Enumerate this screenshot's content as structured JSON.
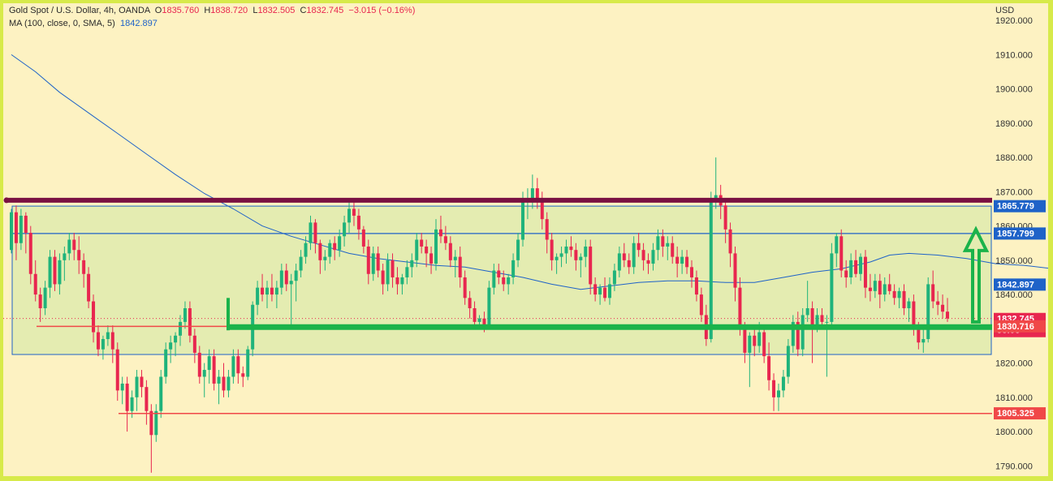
{
  "legend": {
    "line1": {
      "symbol": "Gold Spot / U.S. Dollar, 4h, OANDA",
      "o_label": "O",
      "o_value": "1835.760",
      "h_label": "H",
      "h_value": "1838.720",
      "l_label": "L",
      "l_value": "1832.505",
      "c_label": "C",
      "c_value": "1832.745",
      "change": "−3.015 (−0.16%)"
    },
    "line2": {
      "label": "MA (100, close, 0, SMA, 5)",
      "value": "1842.897"
    }
  },
  "colors": {
    "up": "#1fb37b",
    "down": "#e8264f",
    "ma": "#1e62c8",
    "resistance": "#7a1142",
    "support_band": "#1bb34a",
    "zone_fill": "#e4ecb1",
    "frame": "#d7ea4a"
  },
  "chart_data": {
    "type": "candlestick",
    "title": "",
    "currency": "USD",
    "ylim": [
      1787,
      1925
    ],
    "y_ticks": [
      "1790.000",
      "1800.000",
      "1810.000",
      "1820.000",
      "1830.000",
      "1840.000",
      "1850.000",
      "1860.000",
      "1870.000",
      "1880.000",
      "1890.000",
      "1900.000",
      "1910.000",
      "1920.000"
    ],
    "price_tags": [
      {
        "label": "1865.779",
        "value": 1865.779,
        "color": "#1e62c8"
      },
      {
        "label": "1857.799",
        "value": 1857.799,
        "color": "#1e62c8"
      },
      {
        "label": "1842.897",
        "value": 1842.897,
        "color": "#1e62c8"
      },
      {
        "label": "1832.745",
        "value": 1832.745,
        "color": "#e8264f",
        "sub": "53:06"
      },
      {
        "label": "1830.716",
        "value": 1830.716,
        "color": "#f04848"
      },
      {
        "label": "1805.325",
        "value": 1805.325,
        "color": "#f04848"
      }
    ],
    "levels": {
      "resistance_thick": 1867.5,
      "zone_top": 1865.8,
      "zone_bottom": 1822.5,
      "blue_line": 1857.8,
      "support_thick": 1830.5,
      "red_line_1830": 1830.7,
      "red_line_1805": 1805.3
    },
    "ma_points": [
      [
        0,
        1910
      ],
      [
        5,
        1905
      ],
      [
        10,
        1899
      ],
      [
        16,
        1893
      ],
      [
        22,
        1887
      ],
      [
        28,
        1881
      ],
      [
        34,
        1875
      ],
      [
        40,
        1869.5
      ],
      [
        46,
        1865
      ],
      [
        52,
        1860
      ],
      [
        58,
        1857
      ],
      [
        64,
        1854.5
      ],
      [
        70,
        1852
      ],
      [
        76,
        1850.5
      ],
      [
        82,
        1849.5
      ],
      [
        88,
        1848.5
      ],
      [
        94,
        1848
      ],
      [
        100,
        1846.5
      ],
      [
        106,
        1845
      ],
      [
        112,
        1843
      ],
      [
        118,
        1841.5
      ],
      [
        124,
        1842.5
      ],
      [
        130,
        1843.5
      ],
      [
        136,
        1844
      ],
      [
        142,
        1844
      ],
      [
        148,
        1843.5
      ],
      [
        154,
        1843.5
      ],
      [
        160,
        1845
      ],
      [
        166,
        1846.5
      ],
      [
        172,
        1847.5
      ],
      [
        178,
        1849.5
      ],
      [
        182,
        1851.5
      ],
      [
        186,
        1852
      ],
      [
        192,
        1851.5
      ],
      [
        198,
        1850.5
      ],
      [
        204,
        1849
      ],
      [
        210,
        1848.5
      ],
      [
        216,
        1847.5
      ],
      [
        222,
        1846.5
      ],
      [
        228,
        1845.5
      ],
      [
        232,
        1845
      ],
      [
        236,
        1843.5
      ]
    ],
    "candles": [
      [
        1853,
        1865,
        1852,
        1864
      ],
      [
        1864,
        1866,
        1850,
        1855
      ],
      [
        1855,
        1865,
        1853,
        1863
      ],
      [
        1863,
        1864,
        1852,
        1858
      ],
      [
        1858,
        1860,
        1843,
        1846
      ],
      [
        1846,
        1850,
        1838,
        1840
      ],
      [
        1840,
        1842,
        1832,
        1836
      ],
      [
        1836,
        1844,
        1834,
        1842
      ],
      [
        1842,
        1853,
        1839,
        1851
      ],
      [
        1851,
        1853,
        1841,
        1843
      ],
      [
        1843,
        1852,
        1840,
        1850
      ],
      [
        1850,
        1854,
        1844,
        1852
      ],
      [
        1852,
        1858,
        1850,
        1856
      ],
      [
        1856,
        1858,
        1850,
        1853
      ],
      [
        1853,
        1857,
        1846,
        1850
      ],
      [
        1850,
        1852,
        1842,
        1846
      ],
      [
        1846,
        1848,
        1836,
        1838
      ],
      [
        1838,
        1840,
        1826,
        1829
      ],
      [
        1829,
        1831,
        1822,
        1824
      ],
      [
        1824,
        1828,
        1821,
        1827
      ],
      [
        1827,
        1831,
        1825,
        1829
      ],
      [
        1829,
        1831,
        1820,
        1824
      ],
      [
        1824,
        1826,
        1809,
        1812
      ],
      [
        1812,
        1816,
        1808,
        1814
      ],
      [
        1814,
        1816,
        1800,
        1806
      ],
      [
        1806,
        1812,
        1804,
        1810
      ],
      [
        1810,
        1818,
        1806,
        1816
      ],
      [
        1816,
        1818,
        1810,
        1813
      ],
      [
        1813,
        1815,
        1802,
        1806
      ],
      [
        1806,
        1808,
        1788,
        1799
      ],
      [
        1799,
        1808,
        1797,
        1806
      ],
      [
        1806,
        1818,
        1804,
        1816
      ],
      [
        1816,
        1826,
        1814,
        1824
      ],
      [
        1824,
        1828,
        1820,
        1826
      ],
      [
        1826,
        1829,
        1822,
        1828
      ],
      [
        1828,
        1834,
        1825,
        1832
      ],
      [
        1832,
        1838,
        1830,
        1836
      ],
      [
        1836,
        1838,
        1826,
        1828
      ],
      [
        1828,
        1830,
        1820,
        1823
      ],
      [
        1823,
        1825,
        1814,
        1816
      ],
      [
        1816,
        1820,
        1810,
        1818
      ],
      [
        1818,
        1824,
        1814,
        1822
      ],
      [
        1822,
        1824,
        1812,
        1814
      ],
      [
        1814,
        1818,
        1808,
        1816
      ],
      [
        1816,
        1820,
        1810,
        1812
      ],
      [
        1812,
        1818,
        1810,
        1816
      ],
      [
        1816,
        1824,
        1814,
        1822
      ],
      [
        1822,
        1824,
        1814,
        1817
      ],
      [
        1817,
        1819,
        1813,
        1816
      ],
      [
        1816,
        1825,
        1815,
        1824
      ],
      [
        1824,
        1838,
        1822,
        1837
      ],
      [
        1837,
        1844,
        1834,
        1842
      ],
      [
        1842,
        1846,
        1838,
        1840
      ],
      [
        1840,
        1844,
        1836,
        1842
      ],
      [
        1842,
        1846,
        1838,
        1840
      ],
      [
        1840,
        1844,
        1836,
        1842
      ],
      [
        1842,
        1849,
        1840,
        1847
      ],
      [
        1847,
        1849,
        1841,
        1843
      ],
      [
        1843,
        1846,
        1830,
        1844
      ],
      [
        1844,
        1849,
        1838,
        1847
      ],
      [
        1847,
        1853,
        1845,
        1851
      ],
      [
        1851,
        1857,
        1849,
        1855
      ],
      [
        1855,
        1863,
        1853,
        1861
      ],
      [
        1861,
        1862,
        1852,
        1855
      ],
      [
        1855,
        1856,
        1846,
        1850
      ],
      [
        1850,
        1853,
        1847,
        1851
      ],
      [
        1851,
        1856,
        1849,
        1855
      ],
      [
        1855,
        1857,
        1850,
        1853
      ],
      [
        1853,
        1859,
        1851,
        1857
      ],
      [
        1857,
        1863,
        1854,
        1861
      ],
      [
        1861,
        1867,
        1858,
        1865
      ],
      [
        1865,
        1868,
        1860,
        1863
      ],
      [
        1863,
        1865,
        1856,
        1859
      ],
      [
        1859,
        1860,
        1852,
        1854
      ],
      [
        1854,
        1856,
        1843,
        1846
      ],
      [
        1846,
        1854,
        1844,
        1852
      ],
      [
        1852,
        1854,
        1845,
        1847
      ],
      [
        1847,
        1849,
        1840,
        1843
      ],
      [
        1843,
        1852,
        1841,
        1850
      ],
      [
        1850,
        1852,
        1842,
        1845
      ],
      [
        1845,
        1848,
        1840,
        1843
      ],
      [
        1843,
        1846,
        1840,
        1845
      ],
      [
        1845,
        1850,
        1843,
        1848
      ],
      [
        1848,
        1852,
        1845,
        1850
      ],
      [
        1850,
        1858,
        1848,
        1856
      ],
      [
        1856,
        1858,
        1852,
        1854
      ],
      [
        1854,
        1856,
        1848,
        1852
      ],
      [
        1852,
        1854,
        1846,
        1849
      ],
      [
        1849,
        1862,
        1847,
        1859
      ],
      [
        1859,
        1863,
        1855,
        1857
      ],
      [
        1857,
        1860,
        1853,
        1855
      ],
      [
        1855,
        1857,
        1848,
        1850
      ],
      [
        1850,
        1853,
        1845,
        1851
      ],
      [
        1851,
        1854,
        1842,
        1845
      ],
      [
        1845,
        1847,
        1837,
        1839
      ],
      [
        1839,
        1841,
        1833,
        1836
      ],
      [
        1836,
        1838,
        1830,
        1832
      ],
      [
        1832,
        1834,
        1830,
        1833
      ],
      [
        1833,
        1835,
        1829,
        1831
      ],
      [
        1831,
        1844,
        1830,
        1842
      ],
      [
        1842,
        1849,
        1840,
        1847
      ],
      [
        1847,
        1849,
        1843,
        1845
      ],
      [
        1845,
        1847,
        1841,
        1843
      ],
      [
        1843,
        1846,
        1840,
        1845
      ],
      [
        1845,
        1852,
        1843,
        1850
      ],
      [
        1850,
        1858,
        1848,
        1856
      ],
      [
        1856,
        1870,
        1854,
        1867
      ],
      [
        1867,
        1871,
        1862,
        1868
      ],
      [
        1868,
        1875,
        1865,
        1871
      ],
      [
        1871,
        1874,
        1865,
        1868
      ],
      [
        1868,
        1870,
        1859,
        1862
      ],
      [
        1862,
        1864,
        1852,
        1856
      ],
      [
        1856,
        1858,
        1847,
        1850
      ],
      [
        1850,
        1852,
        1846,
        1851
      ],
      [
        1851,
        1854,
        1848,
        1852
      ],
      [
        1852,
        1856,
        1849,
        1854
      ],
      [
        1854,
        1857,
        1851,
        1853
      ],
      [
        1853,
        1855,
        1847,
        1850
      ],
      [
        1850,
        1852,
        1845,
        1851
      ],
      [
        1851,
        1856,
        1848,
        1854
      ],
      [
        1854,
        1856,
        1840,
        1843
      ],
      [
        1843,
        1845,
        1838,
        1840
      ],
      [
        1840,
        1843,
        1837,
        1842
      ],
      [
        1842,
        1845,
        1838,
        1839
      ],
      [
        1839,
        1845,
        1837,
        1843
      ],
      [
        1843,
        1849,
        1841,
        1847
      ],
      [
        1847,
        1854,
        1845,
        1852
      ],
      [
        1852,
        1855,
        1848,
        1850
      ],
      [
        1850,
        1852,
        1846,
        1848
      ],
      [
        1848,
        1857,
        1846,
        1855
      ],
      [
        1855,
        1858,
        1851,
        1853
      ],
      [
        1853,
        1855,
        1847,
        1850
      ],
      [
        1850,
        1852,
        1846,
        1849
      ],
      [
        1849,
        1855,
        1847,
        1853
      ],
      [
        1853,
        1859,
        1850,
        1857
      ],
      [
        1857,
        1859,
        1851,
        1854
      ],
      [
        1854,
        1857,
        1850,
        1855
      ],
      [
        1855,
        1857,
        1849,
        1851
      ],
      [
        1851,
        1854,
        1845,
        1849
      ],
      [
        1849,
        1853,
        1846,
        1851
      ],
      [
        1851,
        1853,
        1846,
        1848
      ],
      [
        1848,
        1850,
        1842,
        1845
      ],
      [
        1845,
        1847,
        1838,
        1840
      ],
      [
        1840,
        1842,
        1832,
        1834
      ],
      [
        1834,
        1837,
        1825,
        1827
      ],
      [
        1827,
        1870,
        1826,
        1867
      ],
      [
        1867,
        1880,
        1865,
        1869
      ],
      [
        1869,
        1872,
        1862,
        1866
      ],
      [
        1866,
        1868,
        1855,
        1859
      ],
      [
        1859,
        1861,
        1848,
        1852
      ],
      [
        1852,
        1854,
        1838,
        1842
      ],
      [
        1842,
        1845,
        1828,
        1830
      ],
      [
        1830,
        1832,
        1820,
        1823
      ],
      [
        1823,
        1829,
        1813,
        1828
      ],
      [
        1828,
        1831,
        1822,
        1825
      ],
      [
        1825,
        1832,
        1823,
        1829
      ],
      [
        1829,
        1831,
        1820,
        1822
      ],
      [
        1822,
        1826,
        1812,
        1815
      ],
      [
        1815,
        1817,
        1806,
        1810
      ],
      [
        1810,
        1814,
        1806,
        1812
      ],
      [
        1812,
        1818,
        1810,
        1816
      ],
      [
        1816,
        1827,
        1814,
        1825
      ],
      [
        1825,
        1834,
        1823,
        1832
      ],
      [
        1832,
        1835,
        1822,
        1824
      ],
      [
        1824,
        1836,
        1822,
        1834
      ],
      [
        1834,
        1844,
        1832,
        1836
      ],
      [
        1836,
        1838,
        1820,
        1831
      ],
      [
        1831,
        1836,
        1829,
        1834
      ],
      [
        1834,
        1836,
        1830,
        1832
      ],
      [
        1832,
        1834,
        1816,
        1832
      ],
      [
        1832,
        1855,
        1830,
        1852
      ],
      [
        1852,
        1858,
        1848,
        1857
      ],
      [
        1857,
        1859,
        1845,
        1847
      ],
      [
        1847,
        1850,
        1842,
        1845
      ],
      [
        1845,
        1852,
        1843,
        1850
      ],
      [
        1850,
        1853,
        1845,
        1846
      ],
      [
        1846,
        1852,
        1844,
        1851
      ],
      [
        1851,
        1853,
        1839,
        1842
      ],
      [
        1842,
        1846,
        1838,
        1841
      ],
      [
        1841,
        1846,
        1839,
        1844
      ],
      [
        1844,
        1846,
        1836,
        1840
      ],
      [
        1840,
        1845,
        1838,
        1843
      ],
      [
        1843,
        1846,
        1840,
        1841
      ],
      [
        1841,
        1843,
        1837,
        1839
      ],
      [
        1839,
        1842,
        1836,
        1841
      ],
      [
        1841,
        1843,
        1834,
        1836
      ],
      [
        1836,
        1839,
        1832,
        1838
      ],
      [
        1838,
        1840,
        1828,
        1830
      ],
      [
        1830,
        1832,
        1824,
        1826
      ],
      [
        1826,
        1830,
        1823,
        1827
      ],
      [
        1827,
        1845,
        1826,
        1843
      ],
      [
        1843,
        1847,
        1836,
        1838
      ],
      [
        1838,
        1841,
        1834,
        1837
      ],
      [
        1837,
        1840,
        1833,
        1835
      ],
      [
        1835,
        1839,
        1832,
        1833
      ]
    ]
  }
}
